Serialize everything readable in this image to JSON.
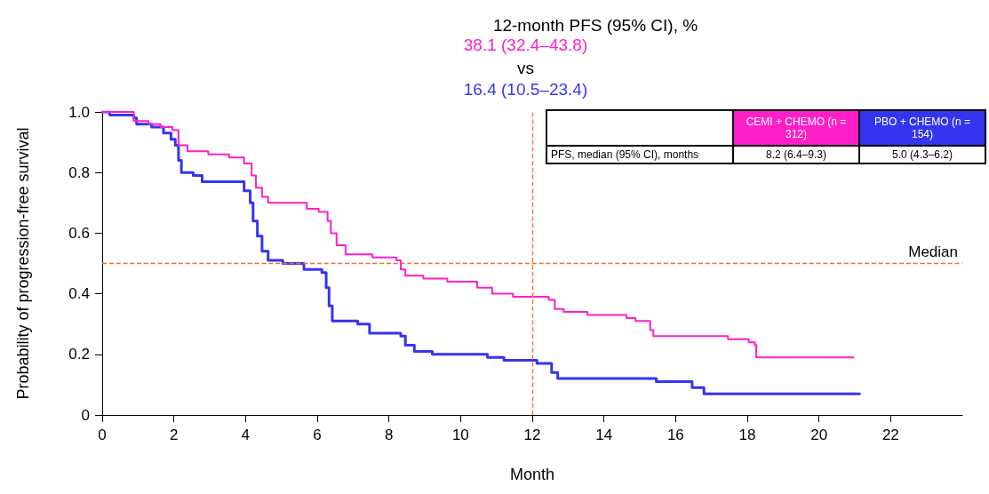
{
  "chart_data": {
    "type": "step",
    "title": "12-month PFS (95% CI), %",
    "xlabel": "Month",
    "ylabel": "Probability of progression-free survival",
    "annotations": [
      "38.1 (32.4–43.8)",
      "vs",
      "16.4 (10.5–23.4)",
      "PFS, median (95% CI), months",
      "8.2 (6.4–9.3)",
      "5.0 (4.3–6.2)"
    ],
    "xlim": [
      0,
      24
    ],
    "xticks": [
      0,
      2,
      4,
      6,
      8,
      10,
      12,
      14,
      16,
      18,
      20,
      22
    ],
    "ylim": [
      0,
      1
    ],
    "yticks": [
      0,
      {
        "value": 0.2,
        "label": "0.2"
      },
      {
        "value": 0.4,
        "label": "0.4"
      },
      {
        "value": 0.6,
        "label": "0.6"
      },
      {
        "value": 0.8,
        "label": "0.8"
      },
      {
        "value": 1,
        "label": "1.0"
      }
    ],
    "grid": false,
    "legend": "top right",
    "ref_lines": [
      {
        "axis": "y",
        "value": 0.5,
        "label": "Median",
        "color": "#f07030",
        "line_style": "dashed"
      },
      {
        "axis": "x",
        "value": 12,
        "label": null,
        "color": "#f07030",
        "line_style": "dashed"
      }
    ],
    "series": [
      {
        "name": "CEMI + CHEMO (n = 312)",
        "color": "#ff1fc8",
        "x": [
          0,
          0.88,
          1.29,
          1.63,
          1.96,
          2.13,
          2.38,
          2.96,
          3.54,
          3.96,
          4.17,
          4.29,
          4.46,
          4.63,
          4.96,
          5.71,
          6.04,
          6.29,
          6.38,
          6.54,
          6.79,
          7.54,
          8.21,
          8.33,
          8.46,
          8.96,
          9.63,
          10.29,
          10.46,
          10.88,
          11.46,
          12.46,
          12.63,
          12.88,
          13.54,
          14.63,
          14.88,
          15.29,
          15.38,
          17.46,
          18.04,
          18.21,
          18.25,
          20.96
        ],
        "values": [
          1,
          0.97,
          0.96,
          0.95,
          0.94,
          0.89,
          0.87,
          0.86,
          0.85,
          0.83,
          0.79,
          0.75,
          0.72,
          0.7,
          0.7,
          0.68,
          0.67,
          0.64,
          0.6,
          0.56,
          0.53,
          0.52,
          0.51,
          0.48,
          0.46,
          0.45,
          0.44,
          0.44,
          0.42,
          0.4,
          0.39,
          0.38,
          0.35,
          0.34,
          0.33,
          0.32,
          0.31,
          0.28,
          0.26,
          0.25,
          0.24,
          0.23,
          0.19,
          0.19
        ]
      },
      {
        "name": "PBO + CHEMO (n = 154)",
        "color": "#3535f0",
        "x": [
          0,
          0.21,
          0.88,
          0.96,
          1.38,
          1.71,
          1.92,
          2.04,
          2.13,
          2.21,
          2.54,
          2.79,
          3.63,
          3.96,
          4.13,
          4.21,
          4.33,
          4.46,
          4.63,
          5.04,
          5.63,
          6.13,
          6.25,
          6.33,
          6.42,
          7.13,
          7.46,
          8.33,
          8.46,
          8.71,
          9.21,
          10.38,
          10.75,
          11.21,
          12.13,
          12.54,
          12.71,
          15.46,
          15.79,
          16.46,
          16.79,
          21.13
        ],
        "values": [
          1,
          0.99,
          0.98,
          0.96,
          0.95,
          0.93,
          0.91,
          0.89,
          0.84,
          0.8,
          0.79,
          0.77,
          0.77,
          0.74,
          0.7,
          0.64,
          0.59,
          0.54,
          0.51,
          0.5,
          0.48,
          0.47,
          0.42,
          0.36,
          0.31,
          0.3,
          0.27,
          0.26,
          0.23,
          0.21,
          0.2,
          0.2,
          0.19,
          0.18,
          0.17,
          0.14,
          0.12,
          0.11,
          0.11,
          0.09,
          0.07,
          0.07
        ]
      }
    ]
  }
}
